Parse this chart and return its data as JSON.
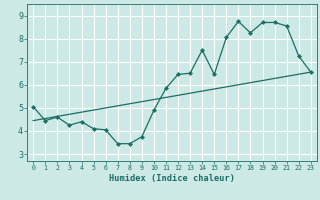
{
  "title": "",
  "xlabel": "Humidex (Indice chaleur)",
  "bg_color": "#cce9e5",
  "grid_color": "#ffffff",
  "line_color": "#1a6e64",
  "xlim": [
    -0.5,
    23.5
  ],
  "ylim": [
    2.7,
    9.5
  ],
  "xticks": [
    0,
    1,
    2,
    3,
    4,
    5,
    6,
    7,
    8,
    9,
    10,
    11,
    12,
    13,
    14,
    15,
    16,
    17,
    18,
    19,
    20,
    21,
    22,
    23
  ],
  "yticks": [
    3,
    4,
    5,
    6,
    7,
    8,
    9
  ],
  "curve1_x": [
    0,
    1,
    2,
    3,
    4,
    5,
    6,
    7,
    8,
    9,
    10,
    11,
    12,
    13,
    14,
    15,
    16,
    17,
    18,
    19,
    20,
    21,
    22,
    23
  ],
  "curve1_y": [
    5.05,
    4.45,
    4.6,
    4.25,
    4.4,
    4.1,
    4.05,
    3.45,
    3.45,
    3.75,
    4.9,
    5.85,
    6.45,
    6.5,
    7.5,
    6.45,
    8.05,
    8.75,
    8.25,
    8.7,
    8.7,
    8.55,
    7.25,
    6.55
  ],
  "curve2_x": [
    0,
    23
  ],
  "curve2_y": [
    4.45,
    6.55
  ]
}
